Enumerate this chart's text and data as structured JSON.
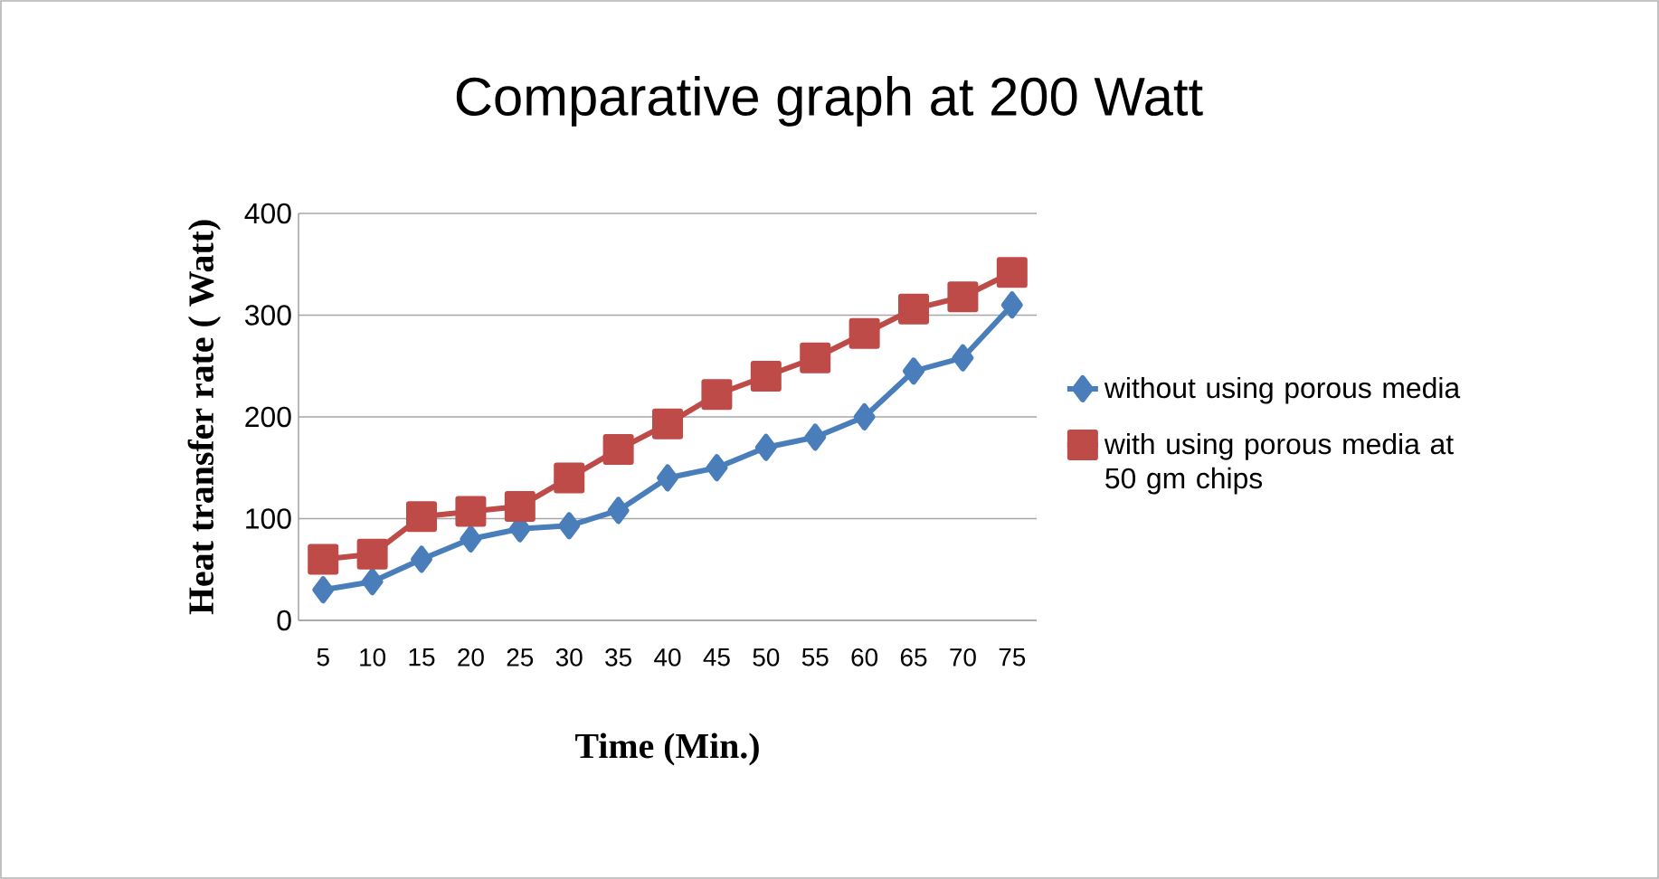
{
  "chart_data": {
    "type": "line",
    "title": "Comparative graph  at 200 Watt",
    "xlabel": "Time (Min.)",
    "ylabel": "Heat transfer rate ( Watt)",
    "categories": [
      "5",
      "10",
      "15",
      "20",
      "25",
      "30",
      "35",
      "40",
      "45",
      "50",
      "55",
      "60",
      "65",
      "70",
      "75"
    ],
    "series": [
      {
        "name": "without using porous media",
        "color": "#4a7ebb",
        "marker": "diamond",
        "values": [
          30,
          38,
          60,
          80,
          90,
          93,
          108,
          140,
          150,
          170,
          180,
          200,
          245,
          258,
          310
        ]
      },
      {
        "name": "with using porous media at 50 gm chips",
        "color": "#be4b48",
        "marker": "square",
        "values": [
          60,
          65,
          102,
          107,
          112,
          140,
          168,
          193,
          222,
          240,
          258,
          282,
          306,
          318,
          342
        ]
      }
    ],
    "ylim": [
      0,
      400
    ],
    "yticks": [
      0,
      100,
      200,
      300,
      400
    ],
    "grid": "y",
    "legend": "right",
    "line_style": "solid"
  }
}
